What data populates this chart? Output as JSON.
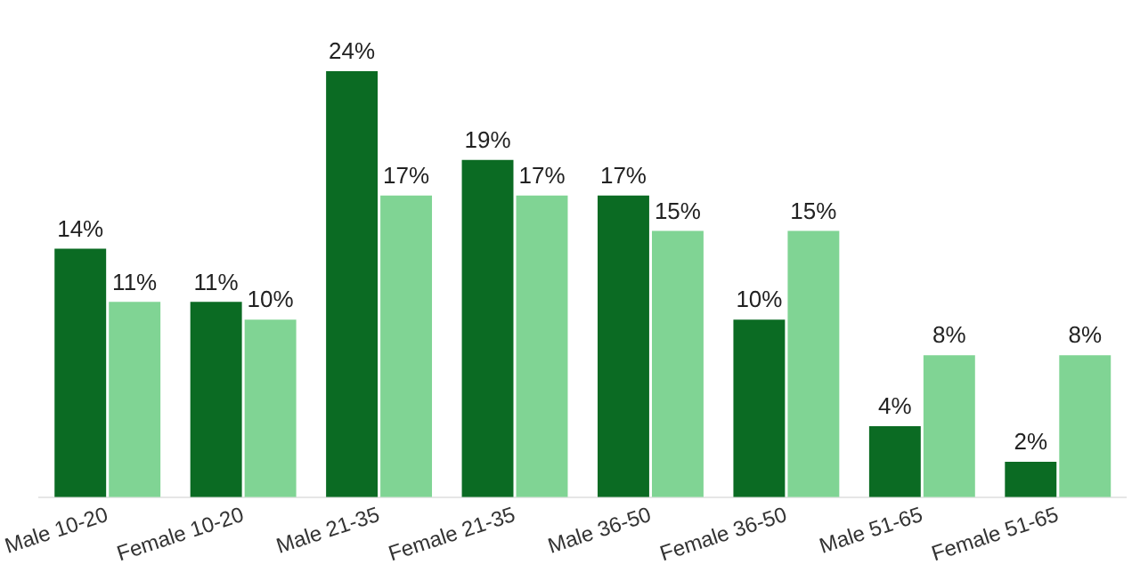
{
  "chart_data": {
    "type": "bar",
    "categories": [
      "Male 10-20",
      "Female 10-20",
      "Male 21-35",
      "Female 21-35",
      "Male 36-50",
      "Female 36-50",
      "Male 51-65",
      "Female 51-65"
    ],
    "series": [
      {
        "color": "#0b6b23",
        "values": [
          14,
          11,
          24,
          19,
          17,
          10,
          4,
          2
        ],
        "value_labels": [
          "14%",
          "11%",
          "24%",
          "19%",
          "17%",
          "10%",
          "4%",
          "2%"
        ]
      },
      {
        "color": "#80d494",
        "values": [
          11,
          10,
          17,
          17,
          15,
          15,
          8,
          8
        ],
        "value_labels": [
          "11%",
          "10%",
          "17%",
          "17%",
          "15%",
          "15%",
          "8%",
          "8%"
        ]
      }
    ],
    "grid": false,
    "legend": false
  }
}
